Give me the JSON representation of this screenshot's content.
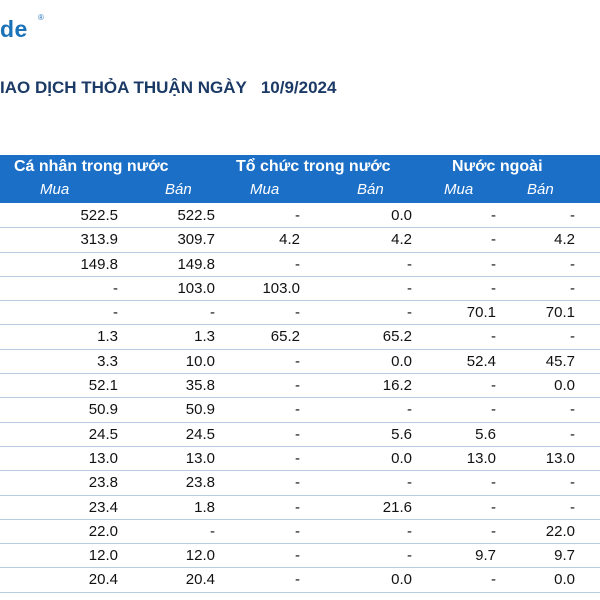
{
  "logo": {
    "text": "de",
    "reg": "®"
  },
  "title": {
    "text": "IAO DỊCH THỎA THUẬN NGÀY",
    "date": "10/9/2024"
  },
  "header": {
    "groups": [
      "Cá nhân trong nước",
      "Tổ chức trong nước",
      "Nước ngoài"
    ],
    "subs": [
      "Mua",
      "Bán",
      "Mua",
      "Bán",
      "Mua",
      "Bán"
    ]
  },
  "rows": [
    [
      "522.5",
      "522.5",
      "-",
      "0.0",
      "-",
      "-"
    ],
    [
      "313.9",
      "309.7",
      "4.2",
      "4.2",
      "-",
      "4.2"
    ],
    [
      "149.8",
      "149.8",
      "-",
      "-",
      "-",
      "-"
    ],
    [
      "-",
      "103.0",
      "103.0",
      "-",
      "-",
      "-"
    ],
    [
      "-",
      "-",
      "-",
      "-",
      "70.1",
      "70.1"
    ],
    [
      "1.3",
      "1.3",
      "65.2",
      "65.2",
      "-",
      "-"
    ],
    [
      "3.3",
      "10.0",
      "-",
      "0.0",
      "52.4",
      "45.7"
    ],
    [
      "52.1",
      "35.8",
      "-",
      "16.2",
      "-",
      "0.0"
    ],
    [
      "50.9",
      "50.9",
      "-",
      "-",
      "-",
      "-"
    ],
    [
      "24.5",
      "24.5",
      "-",
      "5.6",
      "5.6",
      "-"
    ],
    [
      "13.0",
      "13.0",
      "-",
      "0.0",
      "13.0",
      "13.0"
    ],
    [
      "23.8",
      "23.8",
      "-",
      "-",
      "-",
      "-"
    ],
    [
      "23.4",
      "1.8",
      "-",
      "21.6",
      "-",
      "-"
    ],
    [
      "22.0",
      "-",
      "-",
      "-",
      "-",
      "22.0"
    ],
    [
      "12.0",
      "12.0",
      "-",
      "-",
      "9.7",
      "9.7"
    ],
    [
      "20.4",
      "20.4",
      "-",
      "0.0",
      "-",
      "0.0"
    ]
  ]
}
